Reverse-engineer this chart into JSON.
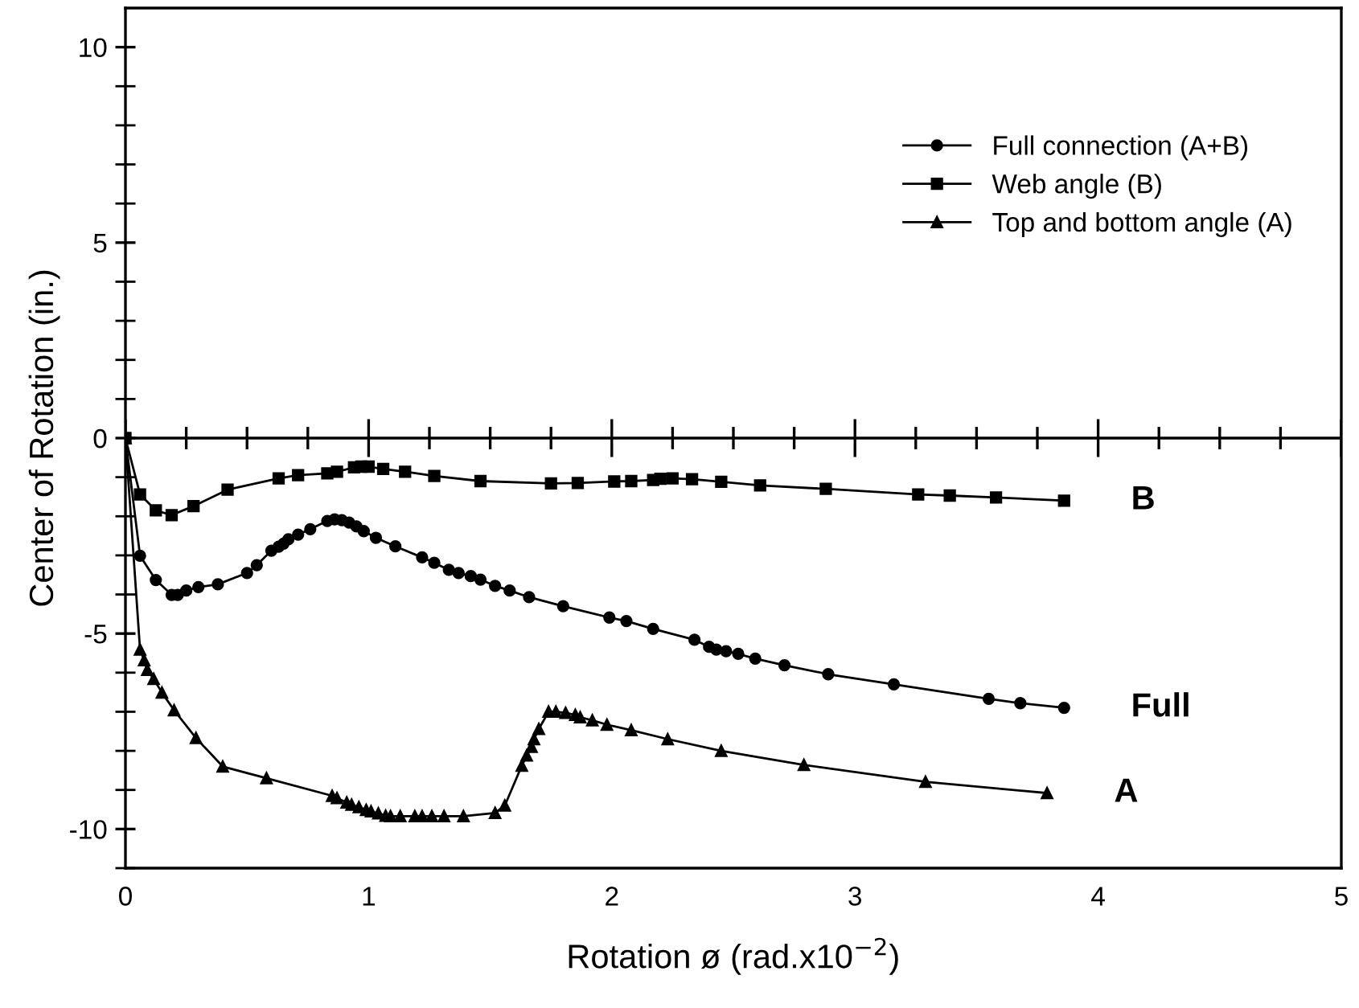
{
  "chart_data": {
    "type": "line",
    "xlabel": "Rotation ø (rad.x10$^{−2}$)",
    "ylabel": "Center of Rotation (in.)",
    "xlim": [
      0,
      5
    ],
    "ylim": [
      -11,
      11
    ],
    "xticks": [
      0,
      {
        "value": 0.25,
        "label": null
      },
      {
        "value": 0.5,
        "label": null
      },
      {
        "value": 0.75,
        "label": null
      },
      1,
      {
        "value": 1.25,
        "label": null
      },
      {
        "value": 1.5,
        "label": null
      },
      {
        "value": 1.75,
        "label": null
      },
      2,
      {
        "value": 2.25,
        "label": null
      },
      {
        "value": 2.5,
        "label": null
      },
      {
        "value": 2.75,
        "label": null
      },
      3,
      {
        "value": 3.25,
        "label": null
      },
      {
        "value": 3.5,
        "label": null
      },
      {
        "value": 3.75,
        "label": null
      },
      4,
      {
        "value": 4.25,
        "label": null
      },
      {
        "value": 4.5,
        "label": null
      },
      {
        "value": 4.75,
        "label": null
      },
      5
    ],
    "yticks": [
      {
        "value": -11,
        "label": null
      },
      -10,
      {
        "value": -9,
        "label": null
      },
      {
        "value": -8,
        "label": null
      },
      {
        "value": -7,
        "label": null
      },
      {
        "value": -6,
        "label": null
      },
      -5,
      {
        "value": -4,
        "label": null
      },
      {
        "value": -3,
        "label": null
      },
      {
        "value": -2,
        "label": null
      },
      {
        "value": -1,
        "label": null
      },
      0,
      {
        "value": 1,
        "label": null
      },
      {
        "value": 2,
        "label": null
      },
      {
        "value": 3,
        "label": null
      },
      {
        "value": 4,
        "label": null
      },
      5,
      {
        "value": 6,
        "label": null
      },
      {
        "value": 7,
        "label": null
      },
      {
        "value": 8,
        "label": null
      },
      {
        "value": 9,
        "label": null
      },
      10
    ],
    "grid": false,
    "legend": "top right",
    "line_style": "solid",
    "ref_lines": [
      {
        "axis": "y",
        "value": 0,
        "color": "#000000",
        "line_style": "solid"
      }
    ],
    "series": [
      {
        "name": "Full connection (A+B)",
        "color": "#000000",
        "marker": "circle",
        "x": [
          0,
          0.06,
          0.125,
          0.19,
          0.215,
          0.25,
          0.3,
          0.38,
          0.5,
          0.54,
          0.6,
          0.63,
          0.65,
          0.67,
          0.71,
          0.76,
          0.83,
          0.86,
          0.89,
          0.92,
          0.95,
          0.98,
          1.03,
          1.11,
          1.22,
          1.27,
          1.33,
          1.37,
          1.42,
          1.46,
          1.52,
          1.58,
          1.66,
          1.8,
          1.99,
          2.06,
          2.17,
          2.34,
          2.4,
          2.43,
          2.47,
          2.52,
          2.59,
          2.71,
          2.89,
          3.16,
          3.55,
          3.68,
          3.86
        ],
        "values": [
          0,
          -3.01,
          -3.63,
          -4.01,
          -4.01,
          -3.9,
          -3.81,
          -3.74,
          -3.45,
          -3.25,
          -2.88,
          -2.78,
          -2.7,
          -2.59,
          -2.47,
          -2.33,
          -2.12,
          -2.08,
          -2.1,
          -2.16,
          -2.26,
          -2.38,
          -2.55,
          -2.77,
          -3.05,
          -3.19,
          -3.37,
          -3.45,
          -3.53,
          -3.62,
          -3.78,
          -3.9,
          -4.07,
          -4.3,
          -4.59,
          -4.68,
          -4.88,
          -5.16,
          -5.34,
          -5.41,
          -5.45,
          -5.52,
          -5.64,
          -5.81,
          -6.04,
          -6.3,
          -6.67,
          -6.78,
          -6.9
        ]
      },
      {
        "name": "Web angle (B)",
        "color": "#000000",
        "marker": "square",
        "x": [
          0,
          0.06,
          0.125,
          0.19,
          0.28,
          0.42,
          0.63,
          0.71,
          0.83,
          0.87,
          0.94,
          0.97,
          1.0,
          1.06,
          1.15,
          1.27,
          1.46,
          1.75,
          1.86,
          2.01,
          2.08,
          2.17,
          2.2,
          2.25,
          2.33,
          2.45,
          2.61,
          2.88,
          3.26,
          3.39,
          3.58,
          3.86
        ],
        "values": [
          0,
          -1.44,
          -1.85,
          -1.97,
          -1.74,
          -1.32,
          -1.03,
          -0.95,
          -0.9,
          -0.86,
          -0.75,
          -0.73,
          -0.73,
          -0.79,
          -0.86,
          -0.97,
          -1.1,
          -1.16,
          -1.15,
          -1.11,
          -1.1,
          -1.07,
          -1.04,
          -1.03,
          -1.05,
          -1.12,
          -1.21,
          -1.3,
          -1.44,
          -1.47,
          -1.52,
          -1.6
        ]
      },
      {
        "name": "Top and bottom angle (A)",
        "color": "#000000",
        "marker": "triangle",
        "x": [
          0,
          0.06,
          0.077,
          0.09,
          0.116,
          0.15,
          0.2,
          0.29,
          0.4,
          0.58,
          0.85,
          0.87,
          0.91,
          0.93,
          0.96,
          0.99,
          1.01,
          1.04,
          1.07,
          1.09,
          1.13,
          1.19,
          1.22,
          1.26,
          1.31,
          1.39,
          1.52,
          1.56,
          1.63,
          1.65,
          1.67,
          1.68,
          1.7,
          1.74,
          1.77,
          1.81,
          1.85,
          1.87,
          1.92,
          1.98,
          2.08,
          2.23,
          2.45,
          2.79,
          3.29,
          3.79
        ],
        "values": [
          0,
          -5.41,
          -5.68,
          -5.93,
          -6.16,
          -6.51,
          -6.96,
          -7.67,
          -8.4,
          -8.7,
          -9.15,
          -9.21,
          -9.32,
          -9.38,
          -9.44,
          -9.51,
          -9.55,
          -9.6,
          -9.66,
          -9.67,
          -9.67,
          -9.67,
          -9.67,
          -9.67,
          -9.67,
          -9.67,
          -9.59,
          -9.4,
          -8.38,
          -8.12,
          -7.9,
          -7.7,
          -7.44,
          -7.0,
          -7.0,
          -7.03,
          -7.08,
          -7.14,
          -7.22,
          -7.33,
          -7.47,
          -7.7,
          -8.0,
          -8.36,
          -8.79,
          -9.08
        ]
      }
    ],
    "annotations": [
      "B",
      "Full",
      "A"
    ]
  }
}
